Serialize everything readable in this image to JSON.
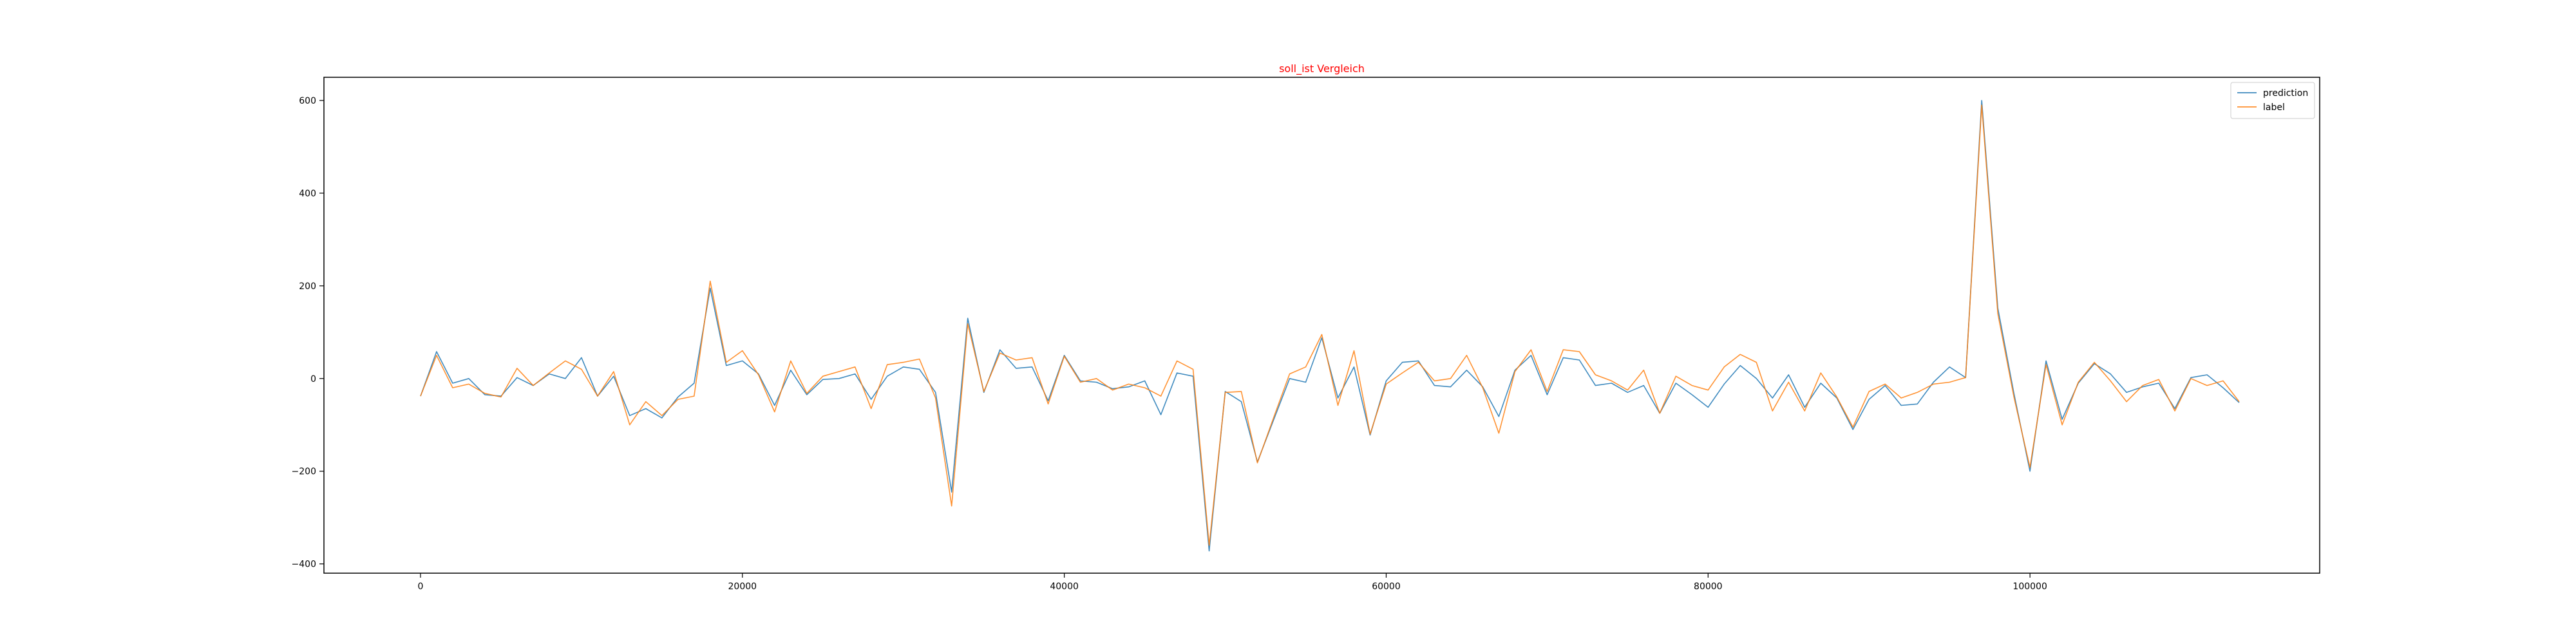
{
  "chart_data": {
    "type": "line",
    "title": "soll_ist Vergleich",
    "title_color": "#ff0000",
    "xlabel": "",
    "ylabel": "",
    "xlim": [
      -6000,
      118000
    ],
    "ylim": [
      -420,
      650
    ],
    "x_ticks": [
      0,
      20000,
      40000,
      60000,
      80000,
      100000
    ],
    "x_tick_labels": [
      "0",
      "20000",
      "40000",
      "60000",
      "80000",
      "100000"
    ],
    "y_ticks": [
      -400,
      -200,
      0,
      200,
      400,
      600
    ],
    "y_tick_labels": [
      "−400",
      "−200",
      "0",
      "200",
      "400",
      "600"
    ],
    "legend_position": "top-right",
    "grid": false,
    "x": [
      0,
      1000,
      2000,
      3000,
      4000,
      5000,
      6000,
      7000,
      8000,
      9000,
      10000,
      11000,
      12000,
      13000,
      14000,
      15000,
      16000,
      17000,
      18000,
      19000,
      20000,
      21000,
      22000,
      23000,
      24000,
      25000,
      26000,
      27000,
      28000,
      29000,
      30000,
      31000,
      32000,
      33000,
      34000,
      35000,
      36000,
      37000,
      38000,
      39000,
      40000,
      41000,
      42000,
      43000,
      44000,
      45000,
      46000,
      47000,
      48000,
      49000,
      50000,
      51000,
      52000,
      53000,
      54000,
      55000,
      56000,
      57000,
      58000,
      59000,
      60000,
      61000,
      62000,
      63000,
      64000,
      65000,
      66000,
      67000,
      68000,
      69000,
      70000,
      71000,
      72000,
      73000,
      74000,
      75000,
      76000,
      77000,
      78000,
      79000,
      80000,
      81000,
      82000,
      83000,
      84000,
      85000,
      86000,
      87000,
      88000,
      89000,
      90000,
      91000,
      92000,
      93000,
      94000,
      95000,
      96000,
      97000,
      98000,
      99000,
      100000,
      101000,
      102000,
      103000,
      104000,
      105000,
      106000,
      107000,
      108000,
      109000,
      110000,
      111000,
      112000,
      113000
    ],
    "series": [
      {
        "name": "prediction",
        "color": "#1f77b4",
        "values": [
          -38,
          58,
          -10,
          0,
          -35,
          -38,
          2,
          -15,
          10,
          0,
          45,
          -38,
          5,
          -80,
          -65,
          -85,
          -40,
          -10,
          195,
          28,
          38,
          10,
          -58,
          18,
          -35,
          -2,
          0,
          10,
          -45,
          5,
          25,
          20,
          -30,
          -245,
          130,
          -30,
          62,
          22,
          25,
          -48,
          50,
          -5,
          -8,
          -22,
          -18,
          -5,
          -78,
          12,
          5,
          -372,
          -28,
          -50,
          -180,
          -90,
          0,
          -8,
          88,
          -42,
          25,
          -122,
          -5,
          35,
          38,
          -15,
          -18,
          18,
          -18,
          -82,
          18,
          50,
          -35,
          45,
          40,
          -15,
          -10,
          -30,
          -15,
          -75,
          -10,
          -35,
          -62,
          -12,
          28,
          0,
          -42,
          8,
          -62,
          -10,
          -42,
          -110,
          -45,
          -15,
          -58,
          -55,
          -8,
          25,
          2,
          600,
          152,
          -32,
          -200,
          38,
          -88,
          -10,
          32,
          10,
          -30,
          -18,
          -10,
          -65,
          2,
          8,
          -20,
          -52
        ]
      },
      {
        "name": "label",
        "color": "#ff7f0e",
        "values": [
          -38,
          50,
          -20,
          -12,
          -32,
          -40,
          22,
          -15,
          12,
          38,
          20,
          -38,
          15,
          -100,
          -50,
          -80,
          -45,
          -38,
          210,
          35,
          60,
          8,
          -72,
          38,
          -32,
          5,
          15,
          25,
          -65,
          30,
          35,
          42,
          -42,
          -275,
          118,
          -28,
          55,
          40,
          45,
          -55,
          48,
          -8,
          0,
          -25,
          -12,
          -20,
          -38,
          38,
          20,
          -360,
          -30,
          -28,
          -182,
          -85,
          10,
          25,
          95,
          -58,
          60,
          -120,
          -12,
          12,
          35,
          -5,
          0,
          50,
          -20,
          -118,
          15,
          62,
          -28,
          62,
          58,
          8,
          -5,
          -25,
          18,
          -75,
          5,
          -15,
          -25,
          25,
          52,
          35,
          -70,
          -8,
          -70,
          12,
          -40,
          -105,
          -28,
          -12,
          -42,
          -30,
          -12,
          -8,
          2,
          590,
          140,
          -40,
          -192,
          30,
          -100,
          -8,
          35,
          -5,
          -50,
          -15,
          -2,
          -70,
          0,
          -15,
          -5,
          -50
        ]
      }
    ]
  }
}
